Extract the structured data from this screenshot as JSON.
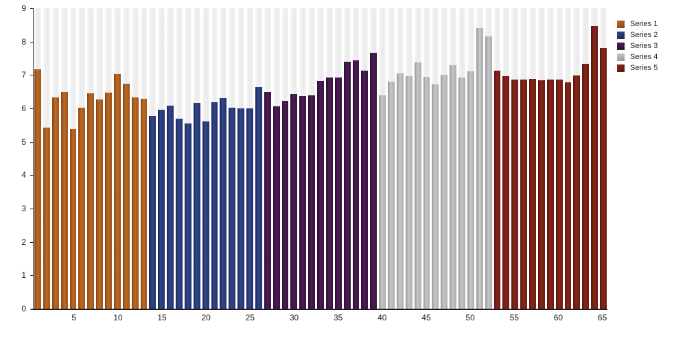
{
  "chart_data": {
    "type": "bar",
    "title": "",
    "xlabel": "",
    "ylabel": "",
    "ylim": [
      0,
      9
    ],
    "xlim_bars": 65,
    "yticks": [
      0,
      1,
      2,
      3,
      4,
      5,
      6,
      7,
      8,
      9
    ],
    "xticks": [
      5,
      10,
      15,
      20,
      25,
      30,
      35,
      40,
      45,
      50,
      55,
      60,
      65
    ],
    "grid": "off",
    "background_tracks": true,
    "legend_position": "right-top",
    "series": [
      {
        "name": "Series 1",
        "color": "#A3561C",
        "color_light": "#B96B26",
        "color_dark": "#8A4413",
        "values": [
          7.18,
          5.42,
          6.32,
          6.49,
          5.38,
          6.02,
          6.46,
          6.26,
          6.48,
          7.03,
          6.73,
          6.32,
          6.28
        ]
      },
      {
        "name": "Series 2",
        "color": "#24356F",
        "color_light": "#31458A",
        "color_dark": "#1B2A5C",
        "values": [
          5.78,
          5.95,
          6.09,
          5.7,
          5.54,
          6.16,
          5.62,
          6.18,
          6.31,
          6.02,
          6.0,
          6.01,
          6.63
        ]
      },
      {
        "name": "Series 3",
        "color": "#3A1540",
        "color_light": "#4C1C55",
        "color_dark": "#2D0F33",
        "values": [
          6.49,
          6.07,
          6.23,
          6.43,
          6.36,
          6.4,
          6.82,
          6.93,
          6.92,
          7.39,
          7.43,
          7.14,
          7.67
        ]
      },
      {
        "name": "Series 4",
        "color": "#AFAFB2",
        "color_light": "#C6C6C9",
        "color_dark": "#98989C",
        "values": [
          6.4,
          6.8,
          7.05,
          6.96,
          7.38,
          6.95,
          6.71,
          7.0,
          7.3,
          6.92,
          7.12,
          8.4,
          8.16
        ]
      },
      {
        "name": "Series 5",
        "color": "#701D13",
        "color_light": "#852619",
        "color_dark": "#5B150C",
        "values": [
          7.13,
          6.96,
          6.86,
          6.86,
          6.89,
          6.85,
          6.87,
          6.87,
          6.78,
          6.99,
          7.33,
          8.46,
          7.81
        ]
      }
    ]
  },
  "legend": {
    "items": [
      {
        "label": "Series 1"
      },
      {
        "label": "Series 2"
      },
      {
        "label": "Series 3"
      },
      {
        "label": "Series 4"
      },
      {
        "label": "Series 5"
      }
    ]
  }
}
